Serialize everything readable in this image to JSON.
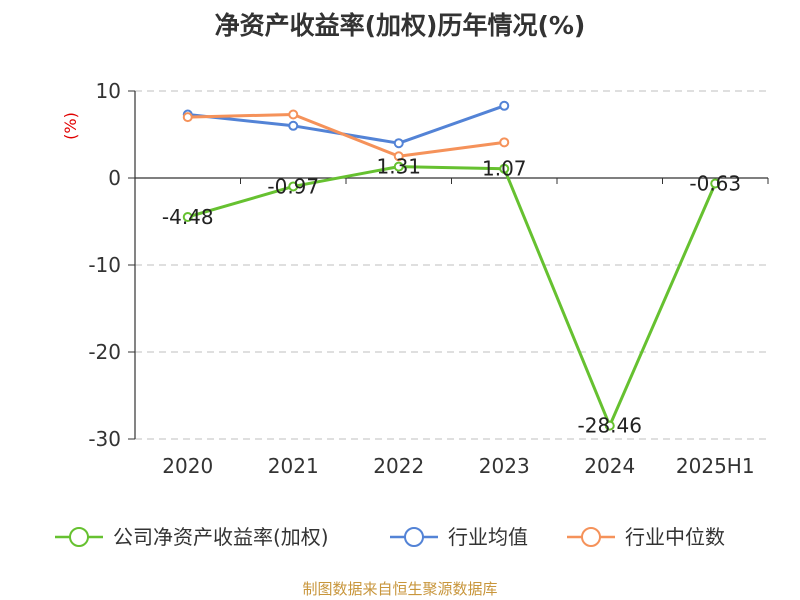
{
  "chart_data": {
    "type": "line",
    "title": "净资产收益率(加权)历年情况(%)",
    "ylabel": "(%)",
    "categories": [
      "2020",
      "2021",
      "2022",
      "2023",
      "2024",
      "2025H1"
    ],
    "ylim": [
      -30,
      10
    ],
    "yticks": [
      10,
      0,
      -10,
      -20,
      -30
    ],
    "grid": true,
    "legend_position": "bottom",
    "series": [
      {
        "name": "公司净资产收益率(加权)",
        "color": "#66c130",
        "values": [
          -4.48,
          -0.97,
          1.31,
          1.07,
          -28.46,
          -0.63
        ],
        "labels": [
          "-4.48",
          "-0.97",
          "1.31",
          "1.07",
          "-28.46",
          "-0.63"
        ]
      },
      {
        "name": "行业均值",
        "color": "#5383d6",
        "values": [
          7.3,
          6.0,
          4.0,
          8.3,
          null,
          null
        ]
      },
      {
        "name": "行业中位数",
        "color": "#f5925a",
        "values": [
          7.0,
          7.3,
          2.5,
          4.1,
          null,
          null
        ]
      }
    ],
    "source": "制图数据来自恒生聚源数据库"
  }
}
